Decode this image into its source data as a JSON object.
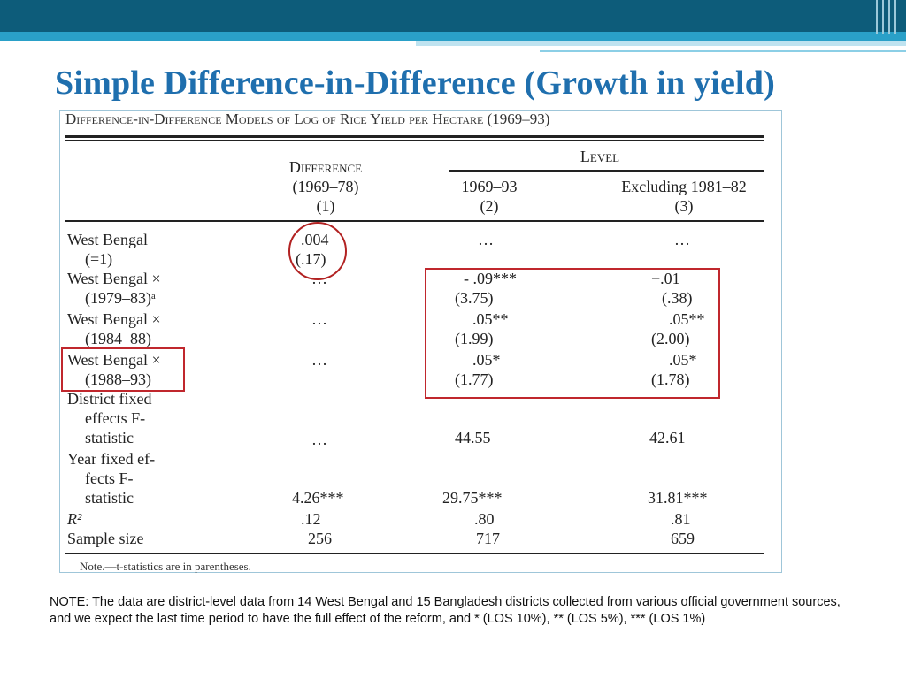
{
  "slide": {
    "title": "Simple Difference-in-Difference (Growth in yield)",
    "footnote": "NOTE: The data are district-level data from 14 West Bengal and 15 Bangladesh districts collected from various official government  sources, and we expect the last time period to have the full effect of the reform, and * (LOS 10%), ** (LOS 5%), *** (LOS 1%)"
  },
  "table": {
    "caption": "Difference-in-Difference Models of Log of Rice Yield per Hectare (1969–93)",
    "header": {
      "level_group": "Level",
      "col1": {
        "name": "Difference",
        "period": "(1969–78)",
        "num": "(1)"
      },
      "col2": {
        "period": "1969–93",
        "num": "(2)"
      },
      "col3": {
        "period": "Excluding 1981–82",
        "num": "(3)"
      }
    },
    "rows": [
      {
        "label": [
          "West Bengal",
          "(=1)"
        ],
        "c1": [
          ".004",
          "(.17)"
        ],
        "c2": [
          "…",
          ""
        ],
        "c3": [
          "…",
          ""
        ]
      },
      {
        "label": [
          "West Bengal ×",
          "(1979–83)ᵃ"
        ],
        "c1": [
          "…",
          ""
        ],
        "c2": [
          "- .09***",
          "(3.75)"
        ],
        "c3": [
          "−.01",
          "(.38)"
        ]
      },
      {
        "label": [
          "West Bengal ×",
          "(1984–88)"
        ],
        "c1": [
          "…",
          ""
        ],
        "c2": [
          ".05**",
          "(1.99)"
        ],
        "c3": [
          ".05**",
          "(2.00)"
        ]
      },
      {
        "label": [
          "West Bengal ×",
          "(1988–93)"
        ],
        "c1": [
          "…",
          ""
        ],
        "c2": [
          ".05*",
          "(1.77)"
        ],
        "c3": [
          ".05*",
          "(1.78)"
        ]
      }
    ],
    "district_fe": {
      "label": [
        "District fixed",
        "effects F-",
        "statistic"
      ],
      "c1": "…",
      "c2": "44.55",
      "c3": "42.61"
    },
    "year_fe": {
      "label": [
        "Year fixed ef-",
        "fects F-",
        "statistic"
      ],
      "c1": "4.26***",
      "c2": "29.75***",
      "c3": "31.81***"
    },
    "r2": {
      "label": "R²",
      "c1": ".12",
      "c2": ".80",
      "c3": ".81"
    },
    "sample": {
      "label": "Sample size",
      "c1": "256",
      "c2": "717",
      "c3": "659"
    },
    "note": "Note.—t-statistics are in parentheses."
  },
  "colors": {
    "title": "#1f6fae",
    "band": "#0d5c7a",
    "highlight": "#c0272d"
  }
}
